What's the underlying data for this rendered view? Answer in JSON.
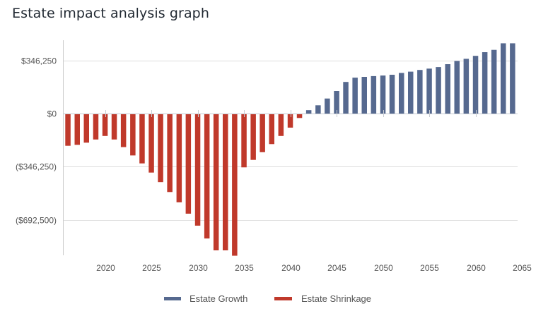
{
  "page": {
    "title": "Estate impact analysis graph"
  },
  "colors": {
    "growth": "#56698f",
    "shrinkage": "#c0392b",
    "grid": "#dddddd",
    "axis": "#cccccc"
  },
  "chart_data": {
    "type": "bar",
    "title": "Estate impact analysis graph",
    "xlabel": "",
    "ylabel": "",
    "ylim": [
      -850000,
      470000
    ],
    "xlim": [
      2015.5,
      2065
    ],
    "grid": true,
    "legend_position": "bottom-center",
    "y_ticks": [
      {
        "value": 346250,
        "label": "$346,250"
      },
      {
        "value": 0,
        "label": "$0"
      },
      {
        "value": -346250,
        "label": "($346,250)"
      },
      {
        "value": -692500,
        "label": "($692,500)"
      }
    ],
    "x_ticks": [
      2020,
      2025,
      2030,
      2035,
      2040,
      2045,
      2050,
      2055,
      2060,
      2065
    ],
    "x_tick_labels": [
      "2020",
      "2025",
      "2030",
      "2035",
      "2040",
      "2045",
      "2050",
      "2055",
      "2060",
      "2065"
    ],
    "legend": [
      {
        "name": "Estate Growth",
        "color": "#56698f"
      },
      {
        "name": "Estate Shrinkage",
        "color": "#c0392b"
      }
    ],
    "x": [
      2016,
      2017,
      2018,
      2019,
      2020,
      2021,
      2022,
      2023,
      2024,
      2025,
      2026,
      2027,
      2028,
      2029,
      2030,
      2031,
      2032,
      2033,
      2034,
      2035,
      2036,
      2037,
      2038,
      2039,
      2040,
      2041,
      2042,
      2043,
      2044,
      2045,
      2046,
      2047,
      2048,
      2049,
      2050,
      2051,
      2052,
      2053,
      2054,
      2055,
      2056,
      2057,
      2058,
      2059,
      2060,
      2061,
      2062,
      2063,
      2064
    ],
    "series": [
      {
        "name": "Estate Shrinkage",
        "values": [
          -210000,
          -204000,
          -190000,
          -169000,
          -146000,
          -169000,
          -219000,
          -273000,
          -325000,
          -385000,
          -447000,
          -512000,
          -579000,
          -653000,
          -731000,
          -815000,
          -892000,
          -892000,
          -927000,
          -351000,
          -302000,
          -252000,
          -199000,
          -146000,
          -92000,
          -29000,
          null,
          null,
          null,
          null,
          null,
          null,
          null,
          null,
          null,
          null,
          null,
          null,
          null,
          null,
          null,
          null,
          null,
          null,
          null,
          null,
          null,
          null,
          null
        ]
      },
      {
        "name": "Estate Growth",
        "values": [
          null,
          null,
          null,
          null,
          null,
          null,
          null,
          null,
          null,
          null,
          null,
          null,
          null,
          null,
          null,
          null,
          null,
          null,
          null,
          null,
          null,
          null,
          null,
          null,
          null,
          null,
          22000,
          54000,
          98000,
          147000,
          206000,
          234000,
          239000,
          244000,
          248000,
          253000,
          265000,
          273000,
          284000,
          293000,
          303000,
          322000,
          343000,
          357000,
          376000,
          400000,
          415000,
          458000,
          458000
        ]
      }
    ]
  }
}
